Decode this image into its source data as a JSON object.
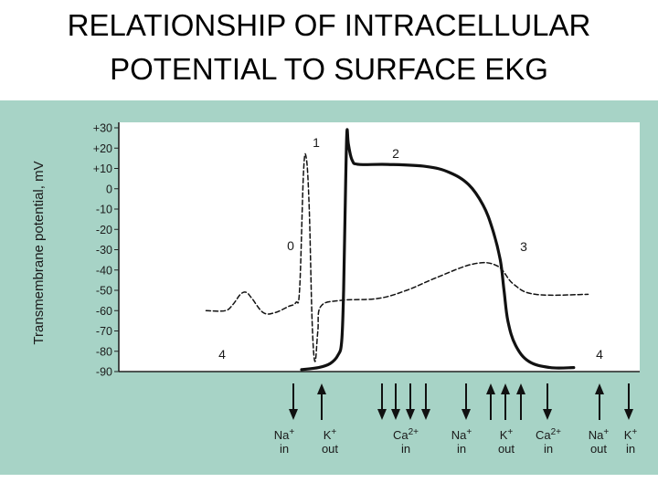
{
  "title": {
    "line1": "RELATIONSHIP OF INTRACELLULAR",
    "line2": "POTENTIAL TO SURFACE EKG"
  },
  "colors": {
    "panel_background": "#a7d3c6",
    "plot_background": "#ffffff",
    "curve": "#111111"
  },
  "chart_data": {
    "type": "line",
    "ylabel": "Transmembrane potential, mV",
    "ylim": [
      -90,
      30
    ],
    "yticks": [
      "+30",
      "+20",
      "+10",
      "0",
      "-10",
      "-20",
      "-30",
      "-40",
      "-50",
      "-60",
      "-70",
      "-80",
      "-90"
    ],
    "phase_labels": [
      "0",
      "1",
      "2",
      "3",
      "4",
      "4"
    ],
    "series": [
      {
        "style": "solid",
        "points": [
          [
            0,
            -89
          ],
          [
            18,
            -88
          ],
          [
            30,
            -86
          ],
          [
            38,
            -82
          ],
          [
            42,
            -75
          ],
          [
            44,
            -50
          ],
          [
            46,
            0
          ],
          [
            47.5,
            28
          ],
          [
            49,
            22
          ],
          [
            53,
            14
          ],
          [
            60,
            12
          ],
          [
            90,
            12
          ],
          [
            130,
            11
          ],
          [
            155,
            8
          ],
          [
            175,
            2
          ],
          [
            190,
            -8
          ],
          [
            200,
            -20
          ],
          [
            208,
            -35
          ],
          [
            212,
            -50
          ],
          [
            216,
            -65
          ],
          [
            224,
            -77
          ],
          [
            238,
            -85
          ],
          [
            260,
            -88
          ],
          [
            285,
            -88
          ]
        ]
      },
      {
        "style": "dashed",
        "points": [
          [
            -100,
            -60
          ],
          [
            -80,
            -60
          ],
          [
            -72,
            -57
          ],
          [
            -64,
            -52
          ],
          [
            -58,
            -51
          ],
          [
            -52,
            -54
          ],
          [
            -40,
            -61
          ],
          [
            -28,
            -61
          ],
          [
            -14,
            -58
          ],
          [
            -6,
            -56
          ],
          [
            -2,
            -49
          ],
          [
            2,
            8
          ],
          [
            5,
            15
          ],
          [
            8,
            -10
          ],
          [
            11,
            -65
          ],
          [
            14,
            -85
          ],
          [
            17,
            -70
          ],
          [
            20,
            -58
          ],
          [
            40,
            -55
          ],
          [
            80,
            -54
          ],
          [
            110,
            -50
          ],
          [
            140,
            -44
          ],
          [
            180,
            -37
          ],
          [
            205,
            -38
          ],
          [
            222,
            -47
          ],
          [
            245,
            -52
          ],
          [
            300,
            -52
          ]
        ]
      }
    ],
    "ion_arrows": [
      {
        "direction": "in"
      },
      {
        "direction": "out"
      },
      {
        "direction": "in"
      },
      {
        "direction": "in"
      },
      {
        "direction": "in"
      },
      {
        "direction": "in"
      },
      {
        "direction": "in"
      },
      {
        "direction": "out"
      },
      {
        "direction": "out"
      },
      {
        "direction": "out"
      },
      {
        "direction": "in"
      },
      {
        "direction": "out"
      },
      {
        "direction": "in"
      }
    ],
    "ion_labels": [
      {
        "ion": "Na+",
        "flow": "in"
      },
      {
        "ion": "K+",
        "flow": "out"
      },
      {
        "ion": "Ca2+",
        "flow": "in"
      },
      {
        "ion": "Na+",
        "flow": "in"
      },
      {
        "ion": "K+",
        "flow": "out"
      },
      {
        "ion": "Ca2+",
        "flow": "in"
      },
      {
        "ion": "Na+",
        "flow": "out"
      },
      {
        "ion": "K+",
        "flow": "in"
      }
    ]
  }
}
